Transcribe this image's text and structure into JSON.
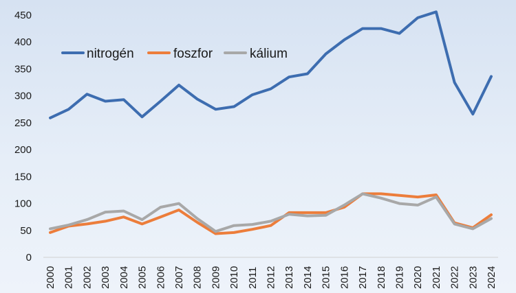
{
  "chart_data": {
    "type": "line",
    "title": "",
    "xlabel": "",
    "ylabel": "",
    "ylim": [
      0,
      450
    ],
    "yticks": [
      0,
      50,
      100,
      150,
      200,
      250,
      300,
      350,
      400,
      450
    ],
    "grid": false,
    "legend_position": "top-left",
    "x": [
      "2000",
      "2001",
      "2002",
      "2003",
      "2004",
      "2005",
      "2006",
      "2007",
      "2008",
      "2009",
      "2010",
      "2011",
      "2012",
      "2013",
      "2014",
      "2015",
      "2016",
      "2017",
      "2018",
      "2019",
      "2020",
      "2021",
      "2022",
      "2023",
      "2024"
    ],
    "series": [
      {
        "name": "nitrogén",
        "color": "#3d6db0",
        "values": [
          259,
          275,
          303,
          290,
          293,
          261,
          290,
          320,
          294,
          275,
          280,
          302,
          313,
          335,
          341,
          378,
          404,
          425,
          425,
          416,
          445,
          456,
          325,
          266,
          336
        ]
      },
      {
        "name": "foszfor",
        "color": "#ec7d3b",
        "values": [
          46,
          58,
          62,
          67,
          75,
          62,
          75,
          88,
          65,
          44,
          46,
          52,
          59,
          83,
          83,
          83,
          93,
          118,
          118,
          115,
          112,
          116,
          64,
          55,
          79
        ]
      },
      {
        "name": "kálium",
        "color": "#a8a8a8",
        "values": [
          53,
          60,
          70,
          84,
          86,
          70,
          93,
          100,
          72,
          48,
          59,
          61,
          67,
          80,
          77,
          78,
          97,
          118,
          110,
          100,
          97,
          112,
          62,
          53,
          72
        ]
      }
    ]
  }
}
